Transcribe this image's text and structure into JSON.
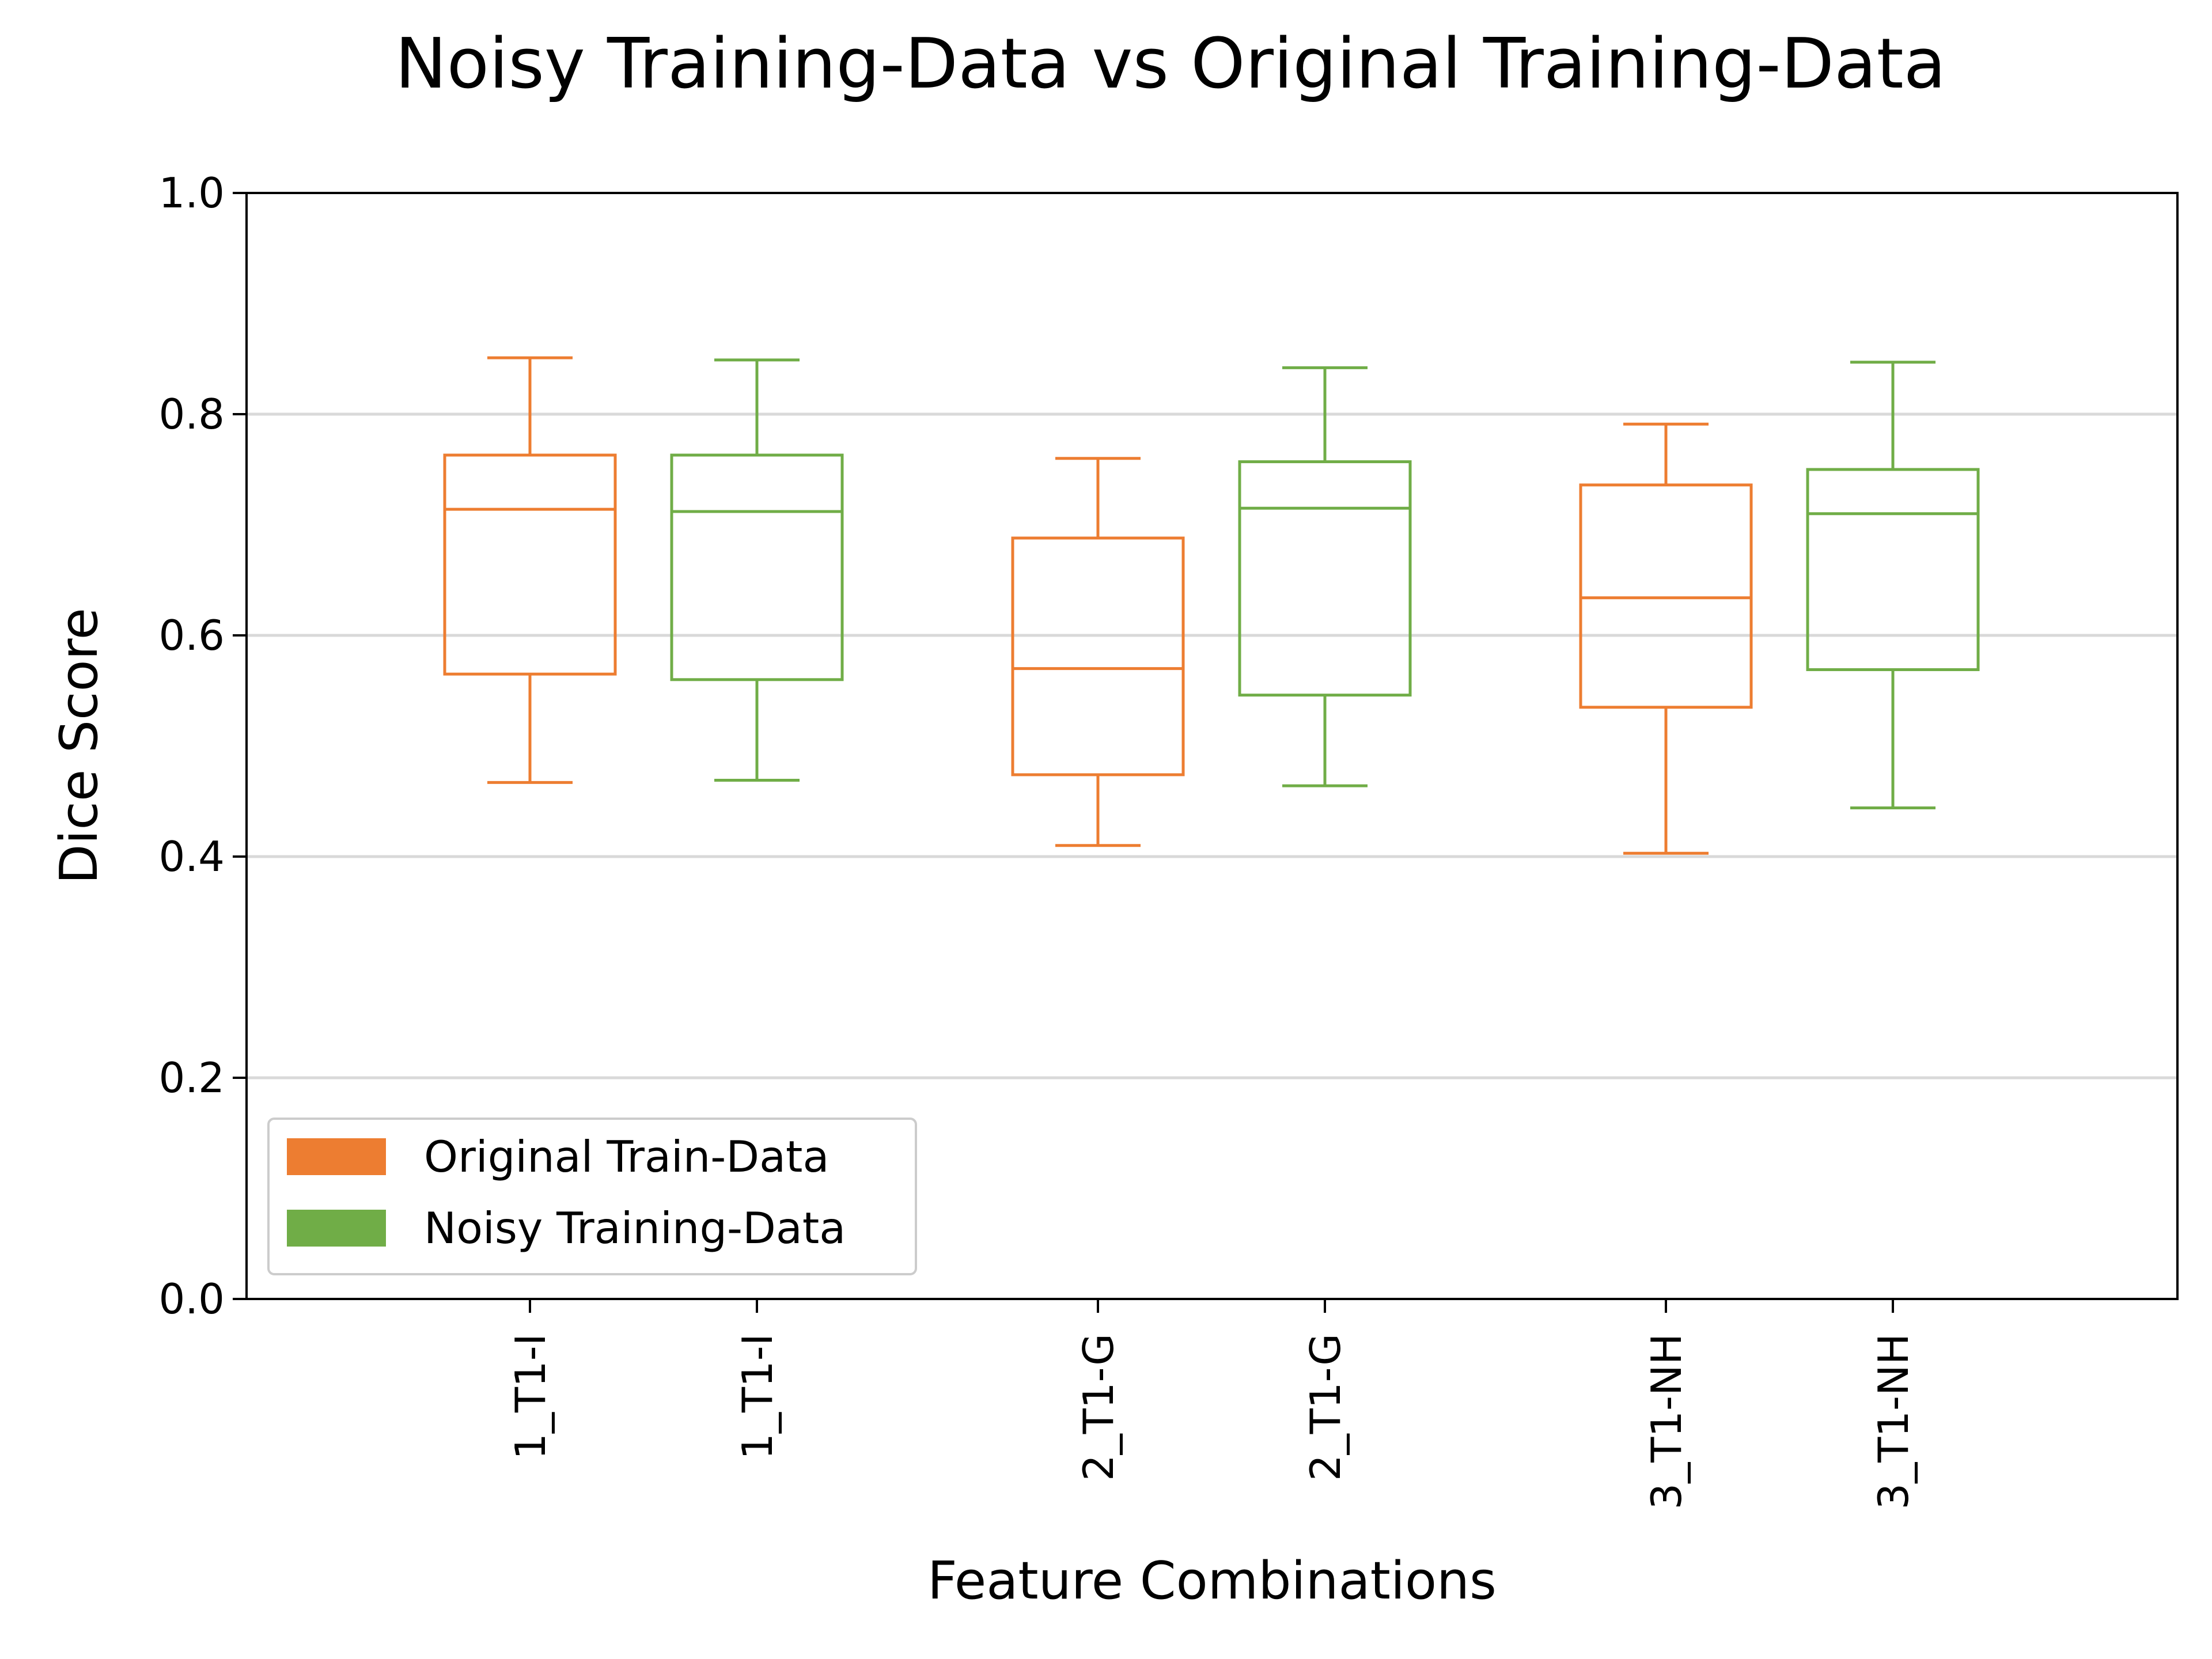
{
  "chart_data": {
    "type": "box",
    "title": "Noisy Training-Data vs Original Training-Data",
    "xlabel": "Feature Combinations",
    "ylabel": "Dice Score",
    "ylim": [
      0,
      1
    ],
    "yticks": [
      "0.0",
      "0.2",
      "0.4",
      "0.6",
      "0.8",
      "1.0"
    ],
    "grid": "horizontal",
    "legend_position": "lower-left",
    "legend": [
      {
        "label": "Original Train-Data",
        "color": "#ED7D31"
      },
      {
        "label": "Noisy Training-Data",
        "color": "#70AD47"
      }
    ],
    "boxes": [
      {
        "label": "1_T1-I",
        "series": 0,
        "whisker_low": 0.467,
        "q1": 0.565,
        "median": 0.714,
        "q3": 0.763,
        "whisker_high": 0.851
      },
      {
        "label": "1_T1-I",
        "series": 1,
        "whisker_low": 0.469,
        "q1": 0.56,
        "median": 0.712,
        "q3": 0.763,
        "whisker_high": 0.849
      },
      {
        "label": "2_T1-G",
        "series": 0,
        "whisker_low": 0.41,
        "q1": 0.474,
        "median": 0.57,
        "q3": 0.688,
        "whisker_high": 0.76
      },
      {
        "label": "2_T1-G",
        "series": 1,
        "whisker_low": 0.464,
        "q1": 0.546,
        "median": 0.715,
        "q3": 0.757,
        "whisker_high": 0.842
      },
      {
        "label": "3_T1-NH",
        "series": 0,
        "whisker_low": 0.403,
        "q1": 0.535,
        "median": 0.634,
        "q3": 0.736,
        "whisker_high": 0.791
      },
      {
        "label": "3_T1-NH",
        "series": 1,
        "whisker_low": 0.444,
        "q1": 0.569,
        "median": 0.71,
        "q3": 0.75,
        "whisker_high": 0.847
      }
    ]
  }
}
